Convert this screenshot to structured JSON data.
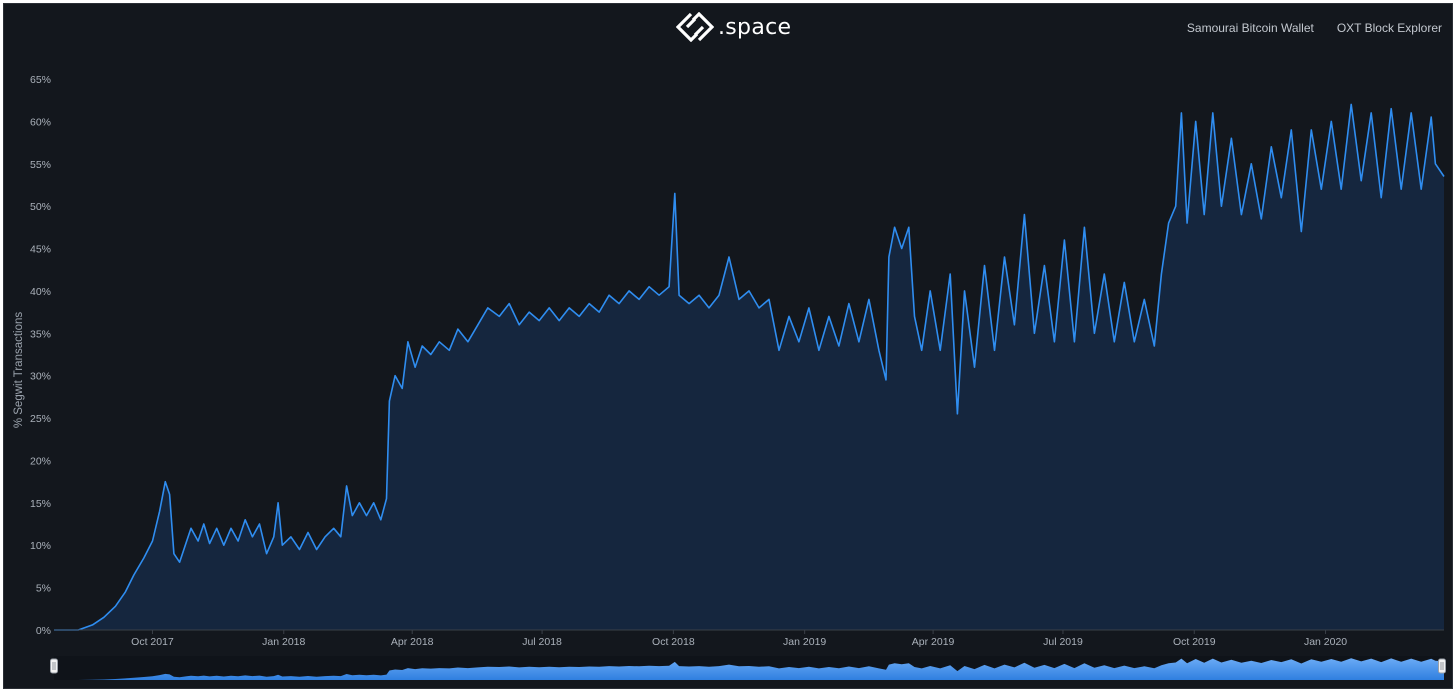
{
  "header": {
    "logo_text": ".space",
    "nav": [
      {
        "label": "Samourai Bitcoin Wallet"
      },
      {
        "label": "OXT Block Explorer"
      }
    ]
  },
  "colors": {
    "background": "#13171d",
    "line": "#2f8df0",
    "area": "#15263e",
    "navigator_fill": "#4a8fe8",
    "axis_text": "#aab1ba"
  },
  "icons": {
    "logo": "samourai-logo-icon",
    "navigator_handles": "slider-handle-icon"
  },
  "chart_data": {
    "type": "area",
    "title": "",
    "xlabel": "",
    "ylabel": "% Segwit Transactions",
    "x_tick_labels": [
      "Oct 2017",
      "Jan 2018",
      "Apr 2018",
      "Jul 2018",
      "Oct 2018",
      "Jan 2019",
      "Apr 2019",
      "Jul 2019",
      "Oct 2019",
      "Jan 2020"
    ],
    "y_tick_labels": [
      "0%",
      "5%",
      "10%",
      "15%",
      "20%",
      "25%",
      "30%",
      "35%",
      "40%",
      "45%",
      "50%",
      "55%",
      "60%",
      "65%"
    ],
    "ylim": [
      0,
      65
    ],
    "xlim": [
      "2017-07-24",
      "2020-03-24"
    ],
    "grid": false,
    "legend": "none",
    "navigator": true,
    "series": [
      {
        "points": [
          [
            "2017-07-24",
            0.0
          ],
          [
            "2017-08-10",
            0.0
          ],
          [
            "2017-08-20",
            0.6
          ],
          [
            "2017-08-28",
            1.5
          ],
          [
            "2017-09-05",
            2.8
          ],
          [
            "2017-09-12",
            4.5
          ],
          [
            "2017-09-18",
            6.5
          ],
          [
            "2017-09-25",
            8.5
          ],
          [
            "2017-10-01",
            10.5
          ],
          [
            "2017-10-06",
            14.0
          ],
          [
            "2017-10-10",
            17.5
          ],
          [
            "2017-10-13",
            16.0
          ],
          [
            "2017-10-16",
            9.0
          ],
          [
            "2017-10-20",
            8.0
          ],
          [
            "2017-10-25",
            10.5
          ],
          [
            "2017-10-28",
            12.0
          ],
          [
            "2017-11-02",
            10.5
          ],
          [
            "2017-11-06",
            12.5
          ],
          [
            "2017-11-10",
            10.2
          ],
          [
            "2017-11-15",
            12.0
          ],
          [
            "2017-11-20",
            10.0
          ],
          [
            "2017-11-25",
            12.0
          ],
          [
            "2017-11-30",
            10.5
          ],
          [
            "2017-12-05",
            13.0
          ],
          [
            "2017-12-10",
            11.0
          ],
          [
            "2017-12-15",
            12.5
          ],
          [
            "2017-12-20",
            9.0
          ],
          [
            "2017-12-25",
            11.0
          ],
          [
            "2017-12-28",
            15.0
          ],
          [
            "2017-12-31",
            10.0
          ],
          [
            "2018-01-06",
            11.0
          ],
          [
            "2018-01-12",
            9.5
          ],
          [
            "2018-01-18",
            11.5
          ],
          [
            "2018-01-24",
            9.5
          ],
          [
            "2018-01-30",
            11.0
          ],
          [
            "2018-02-05",
            12.0
          ],
          [
            "2018-02-10",
            11.0
          ],
          [
            "2018-02-14",
            17.0
          ],
          [
            "2018-02-18",
            13.5
          ],
          [
            "2018-02-23",
            15.0
          ],
          [
            "2018-02-28",
            13.5
          ],
          [
            "2018-03-05",
            15.0
          ],
          [
            "2018-03-10",
            13.0
          ],
          [
            "2018-03-14",
            15.5
          ],
          [
            "2018-03-16",
            27.0
          ],
          [
            "2018-03-20",
            30.0
          ],
          [
            "2018-03-25",
            28.5
          ],
          [
            "2018-03-29",
            34.0
          ],
          [
            "2018-04-03",
            31.0
          ],
          [
            "2018-04-08",
            33.5
          ],
          [
            "2018-04-14",
            32.5
          ],
          [
            "2018-04-20",
            34.0
          ],
          [
            "2018-04-27",
            33.0
          ],
          [
            "2018-05-03",
            35.5
          ],
          [
            "2018-05-10",
            34.0
          ],
          [
            "2018-05-17",
            36.0
          ],
          [
            "2018-05-24",
            38.0
          ],
          [
            "2018-06-01",
            37.0
          ],
          [
            "2018-06-08",
            38.5
          ],
          [
            "2018-06-15",
            36.0
          ],
          [
            "2018-06-22",
            37.5
          ],
          [
            "2018-06-29",
            36.5
          ],
          [
            "2018-07-06",
            38.0
          ],
          [
            "2018-07-13",
            36.5
          ],
          [
            "2018-07-20",
            38.0
          ],
          [
            "2018-07-27",
            37.0
          ],
          [
            "2018-08-03",
            38.5
          ],
          [
            "2018-08-10",
            37.5
          ],
          [
            "2018-08-17",
            39.5
          ],
          [
            "2018-08-24",
            38.5
          ],
          [
            "2018-08-31",
            40.0
          ],
          [
            "2018-09-07",
            39.0
          ],
          [
            "2018-09-14",
            40.5
          ],
          [
            "2018-09-21",
            39.5
          ],
          [
            "2018-09-28",
            40.5
          ],
          [
            "2018-10-02",
            51.5
          ],
          [
            "2018-10-05",
            39.5
          ],
          [
            "2018-10-12",
            38.5
          ],
          [
            "2018-10-19",
            39.5
          ],
          [
            "2018-10-26",
            38.0
          ],
          [
            "2018-11-02",
            39.5
          ],
          [
            "2018-11-09",
            44.0
          ],
          [
            "2018-11-16",
            39.0
          ],
          [
            "2018-11-23",
            40.0
          ],
          [
            "2018-11-30",
            38.0
          ],
          [
            "2018-12-07",
            39.0
          ],
          [
            "2018-12-14",
            33.0
          ],
          [
            "2018-12-21",
            37.0
          ],
          [
            "2018-12-28",
            34.0
          ],
          [
            "2019-01-04",
            38.0
          ],
          [
            "2019-01-11",
            33.0
          ],
          [
            "2019-01-18",
            37.0
          ],
          [
            "2019-01-25",
            33.5
          ],
          [
            "2019-02-01",
            38.5
          ],
          [
            "2019-02-08",
            34.0
          ],
          [
            "2019-02-15",
            39.0
          ],
          [
            "2019-02-22",
            33.0
          ],
          [
            "2019-02-27",
            29.5
          ],
          [
            "2019-03-01",
            44.0
          ],
          [
            "2019-03-05",
            47.5
          ],
          [
            "2019-03-10",
            45.0
          ],
          [
            "2019-03-15",
            47.5
          ],
          [
            "2019-03-19",
            37.0
          ],
          [
            "2019-03-24",
            33.0
          ],
          [
            "2019-03-30",
            40.0
          ],
          [
            "2019-04-06",
            33.0
          ],
          [
            "2019-04-13",
            42.0
          ],
          [
            "2019-04-18",
            25.5
          ],
          [
            "2019-04-23",
            40.0
          ],
          [
            "2019-04-30",
            31.0
          ],
          [
            "2019-05-07",
            43.0
          ],
          [
            "2019-05-14",
            33.0
          ],
          [
            "2019-05-21",
            44.0
          ],
          [
            "2019-05-28",
            36.0
          ],
          [
            "2019-06-04",
            49.0
          ],
          [
            "2019-06-11",
            35.0
          ],
          [
            "2019-06-18",
            43.0
          ],
          [
            "2019-06-25",
            34.0
          ],
          [
            "2019-07-02",
            46.0
          ],
          [
            "2019-07-09",
            34.0
          ],
          [
            "2019-07-16",
            47.5
          ],
          [
            "2019-07-23",
            35.0
          ],
          [
            "2019-07-30",
            42.0
          ],
          [
            "2019-08-06",
            34.0
          ],
          [
            "2019-08-13",
            41.0
          ],
          [
            "2019-08-20",
            34.0
          ],
          [
            "2019-08-27",
            39.0
          ],
          [
            "2019-09-03",
            33.5
          ],
          [
            "2019-09-08",
            42.0
          ],
          [
            "2019-09-13",
            48.0
          ],
          [
            "2019-09-18",
            50.0
          ],
          [
            "2019-09-22",
            61.0
          ],
          [
            "2019-09-26",
            48.0
          ],
          [
            "2019-10-02",
            60.0
          ],
          [
            "2019-10-08",
            49.0
          ],
          [
            "2019-10-14",
            61.0
          ],
          [
            "2019-10-20",
            50.0
          ],
          [
            "2019-10-27",
            58.0
          ],
          [
            "2019-11-03",
            49.0
          ],
          [
            "2019-11-10",
            55.0
          ],
          [
            "2019-11-17",
            48.5
          ],
          [
            "2019-11-24",
            57.0
          ],
          [
            "2019-12-01",
            51.0
          ],
          [
            "2019-12-08",
            59.0
          ],
          [
            "2019-12-15",
            47.0
          ],
          [
            "2019-12-22",
            59.0
          ],
          [
            "2019-12-29",
            52.0
          ],
          [
            "2020-01-05",
            60.0
          ],
          [
            "2020-01-12",
            52.0
          ],
          [
            "2020-01-19",
            62.0
          ],
          [
            "2020-01-26",
            53.0
          ],
          [
            "2020-02-02",
            61.0
          ],
          [
            "2020-02-09",
            51.0
          ],
          [
            "2020-02-16",
            61.5
          ],
          [
            "2020-02-23",
            52.0
          ],
          [
            "2020-03-01",
            61.0
          ],
          [
            "2020-03-08",
            52.0
          ],
          [
            "2020-03-15",
            60.5
          ],
          [
            "2020-03-18",
            55.0
          ],
          [
            "2020-03-24",
            53.5
          ]
        ]
      }
    ]
  }
}
